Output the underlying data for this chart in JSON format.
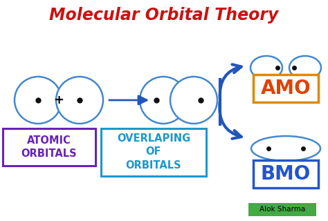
{
  "title": "Molecular Orbital Theory",
  "title_color": "#cc1111",
  "bg_color": "#ffffff",
  "atomic_orbitals_label": "ATOMIC\nORBITALS",
  "atomic_orbitals_color": "#6622bb",
  "atomic_orbitals_box_color": "#6622bb",
  "overlapping_label": "OVERLAPING\nOF\nORBITALS",
  "overlapping_color": "#1a99cc",
  "overlapping_box_color": "#1a99cc",
  "amo_label": "AMO",
  "amo_color": "#dd4400",
  "amo_box_color": "#dd8800",
  "bmo_label": "BMO",
  "bmo_color": "#2255cc",
  "bmo_box_color": "#2255cc",
  "arrow_color": "#2255bb",
  "ellipse_color": "#4488cc",
  "plus_color": "#000000",
  "dot_color": "#111111",
  "alok_bg": "#44aa44",
  "alok_text": "Alok Sharma",
  "alok_color": "#000000"
}
